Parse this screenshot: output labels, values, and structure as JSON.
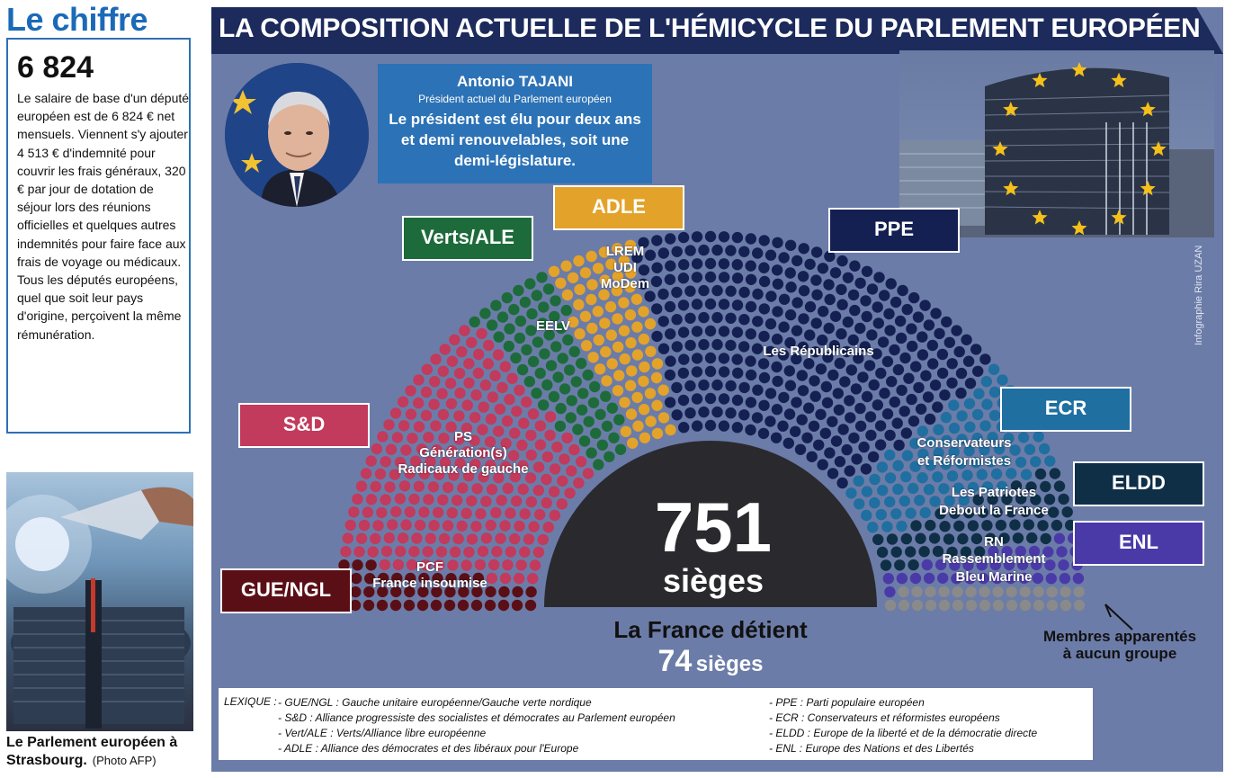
{
  "chiffre": {
    "title": "Le chiffre",
    "number": "6 824",
    "text": "Le salaire de base d'un député européen est de 6 824 € net mensuels. Viennent s'y ajouter 4 513 € d'indemnité pour couvrir les frais généraux, 320 € par jour de dotation de séjour lors des réunions officielles et quelques autres indemnités pour faire face aux frais de voyage ou médicaux. Tous les députés européens, quel que soit leur pays d'origine, perçoivent la même rémunération."
  },
  "photo": {
    "caption": "Le Parlement européen à Strasbourg.",
    "credit": "(Photo AFP)"
  },
  "main_title": "LA COMPOSITION ACTUELLE DE L'HÉMICYCLE DU PARLEMENT EUROPÉEN",
  "tajani": {
    "name": "Antonio TAJANI",
    "role": "Président actuel du Parlement européen",
    "description": "Le président est élu pour deux ans et demi renouvelables, soit une demi-législature."
  },
  "groups": {
    "gue": {
      "label": "GUE/NGL",
      "french_parties_1": "PCF",
      "french_parties_2": "France insoumise",
      "color": "#5a0f16"
    },
    "sd": {
      "label": "S&D",
      "french_parties_1": "PS",
      "french_parties_2": "Génération(s)",
      "french_parties_3": "Radicaux de gauche",
      "color": "#c23a5c"
    },
    "verts": {
      "label": "Verts/ALE",
      "french_parties_1": "EELV",
      "color": "#1d6b3a"
    },
    "adle": {
      "label": "ADLE",
      "french_parties_1": "LREM",
      "french_parties_2": "UDI",
      "french_parties_3": "MoDem",
      "color": "#e3a32a"
    },
    "ppe": {
      "label": "PPE",
      "french_parties_1": "Les Républicains",
      "color": "#142051"
    },
    "ecr": {
      "label": "ECR",
      "french_parties_1": "Conservateurs",
      "french_parties_2": "et Réformistes",
      "color": "#1f6fa0"
    },
    "eldd": {
      "label": "ELDD",
      "french_parties_1": "Les Patriotes",
      "french_parties_2": "Debout la France",
      "color": "#0f2f47"
    },
    "enl": {
      "label": "ENL",
      "french_parties_1": "RN",
      "french_parties_2": "Rassemblement",
      "french_parties_3": "Bleu Marine",
      "color": "#4a3aa8"
    },
    "ni": {
      "color": "#8a8a8a"
    }
  },
  "total": {
    "number": "751",
    "label": "sièges"
  },
  "france": {
    "label": "La France détient",
    "number": "74",
    "unit": "sièges"
  },
  "unaffiliated_note": {
    "line1": "Membres apparentés",
    "line2": "à aucun groupe"
  },
  "credit": "Infographie Rira UZAN",
  "lexique": {
    "title": "LEXIQUE :",
    "col1": [
      "- GUE/NGL : Gauche unitaire européenne/Gauche verte nordique",
      "- S&D : Alliance progressiste des socialistes et démocrates au Parlement européen",
      "- Vert/ALE : Verts/Alliance libre européenne",
      "- ADLE : Alliance des démocrates et des libéraux pour l'Europe"
    ],
    "col2": [
      "- PPE : Parti populaire européen",
      "- ECR : Conservateurs et réformistes européens",
      "- ELDD : Europe de la liberté et de la démocratie directe",
      "- ENL : Europe des Nations et des Libertés"
    ]
  }
}
